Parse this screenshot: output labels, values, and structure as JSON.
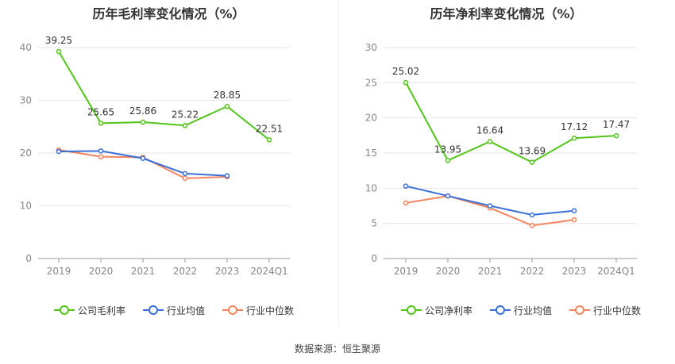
{
  "colors": {
    "company": "#52c41a",
    "avg": "#3b6fd8",
    "median": "#f4845f",
    "grid": "#e6e6e6",
    "axis": "#999999"
  },
  "charts": [
    {
      "title": "历年毛利率变化情况（%）",
      "legend": [
        "公司毛利率",
        "行业均值",
        "行业中位数"
      ]
    },
    {
      "title": "历年净利率变化情况（%）",
      "legend": [
        "公司净利率",
        "行业均值",
        "行业中位数"
      ]
    }
  ],
  "source": "数据来源：恒生聚源",
  "chart_data": [
    {
      "type": "line",
      "title": "历年毛利率变化情况（%）",
      "categories": [
        "2019",
        "2020",
        "2021",
        "2022",
        "2023",
        "2024Q1"
      ],
      "ylim": [
        0,
        40
      ],
      "yticks": [
        0,
        10,
        20,
        30,
        40
      ],
      "grid": true,
      "legend_position": "bottom",
      "series": [
        {
          "name": "公司毛利率",
          "values": [
            39.25,
            25.65,
            25.86,
            25.22,
            28.85,
            22.51
          ],
          "labels": [
            "39.25",
            "25.65",
            "25.86",
            "25.22",
            "28.85",
            "22.51"
          ]
        },
        {
          "name": "行业均值",
          "values": [
            20.3,
            20.4,
            19.0,
            16.1,
            15.7,
            null
          ]
        },
        {
          "name": "行业中位数",
          "values": [
            20.6,
            19.3,
            19.2,
            15.2,
            15.5,
            null
          ]
        }
      ]
    },
    {
      "type": "line",
      "title": "历年净利率变化情况（%）",
      "categories": [
        "2019",
        "2020",
        "2021",
        "2022",
        "2023",
        "2024Q1"
      ],
      "ylim": [
        0,
        30
      ],
      "yticks": [
        0,
        5,
        10,
        15,
        20,
        25,
        30
      ],
      "grid": true,
      "legend_position": "bottom",
      "series": [
        {
          "name": "公司净利率",
          "values": [
            25.02,
            13.95,
            16.64,
            13.69,
            17.12,
            17.47
          ],
          "labels": [
            "25.02",
            "13.95",
            "16.64",
            "13.69",
            "17.12",
            "17.47"
          ]
        },
        {
          "name": "行业均值",
          "values": [
            10.3,
            8.9,
            7.5,
            6.2,
            6.8,
            null
          ]
        },
        {
          "name": "行业中位数",
          "values": [
            7.9,
            8.9,
            7.2,
            4.7,
            5.5,
            null
          ]
        }
      ]
    }
  ]
}
